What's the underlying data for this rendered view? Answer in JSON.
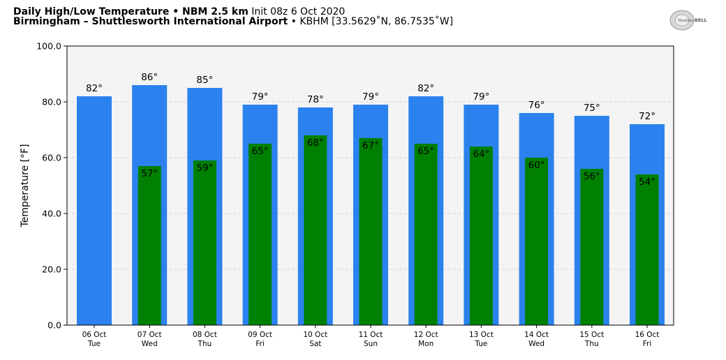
{
  "header": {
    "title_bold": "Daily High/Low Temperature • NBM 2.5 km",
    "init_text": "Init 08z 6 Oct 2020",
    "location_bold": "Birmingham – Shuttlesworth International Airport",
    "location_detail": "• KBHM [33.5629˚N, 86.7535˚W]"
  },
  "logo": {
    "text_left": "Weather",
    "text_right": "BELL"
  },
  "chart_data": {
    "type": "bar",
    "ylabel": "Temperature [°F]",
    "ylim": [
      0,
      100
    ],
    "yticks": [
      "0.0",
      "20.0",
      "40.0",
      "60.0",
      "80.0",
      "100.0"
    ],
    "categories": [
      "06 Oct",
      "07 Oct",
      "08 Oct",
      "09 Oct",
      "10 Oct",
      "11 Oct",
      "12 Oct",
      "13 Oct",
      "14 Oct",
      "15 Oct",
      "16 Oct"
    ],
    "days": [
      "Tue",
      "Wed",
      "Thu",
      "Fri",
      "Sat",
      "Sun",
      "Mon",
      "Tue",
      "Wed",
      "Thu",
      "Fri"
    ],
    "series": [
      {
        "values": [
          82,
          86,
          85,
          79,
          78,
          79,
          82,
          79,
          76,
          75,
          72
        ],
        "color": "#2b82ee"
      },
      {
        "values": [
          null,
          57,
          59,
          65,
          68,
          67,
          65,
          64,
          60,
          56,
          54
        ],
        "color": "#008000"
      }
    ],
    "high_labels": [
      "82°",
      "86°",
      "85°",
      "79°",
      "78°",
      "79°",
      "82°",
      "79°",
      "76°",
      "75°",
      "72°"
    ],
    "low_labels": [
      "",
      "57°",
      "59°",
      "65°",
      "68°",
      "67°",
      "65°",
      "64°",
      "60°",
      "56°",
      "54°"
    ],
    "grid": true,
    "plot_background": "#f4f4f4"
  }
}
